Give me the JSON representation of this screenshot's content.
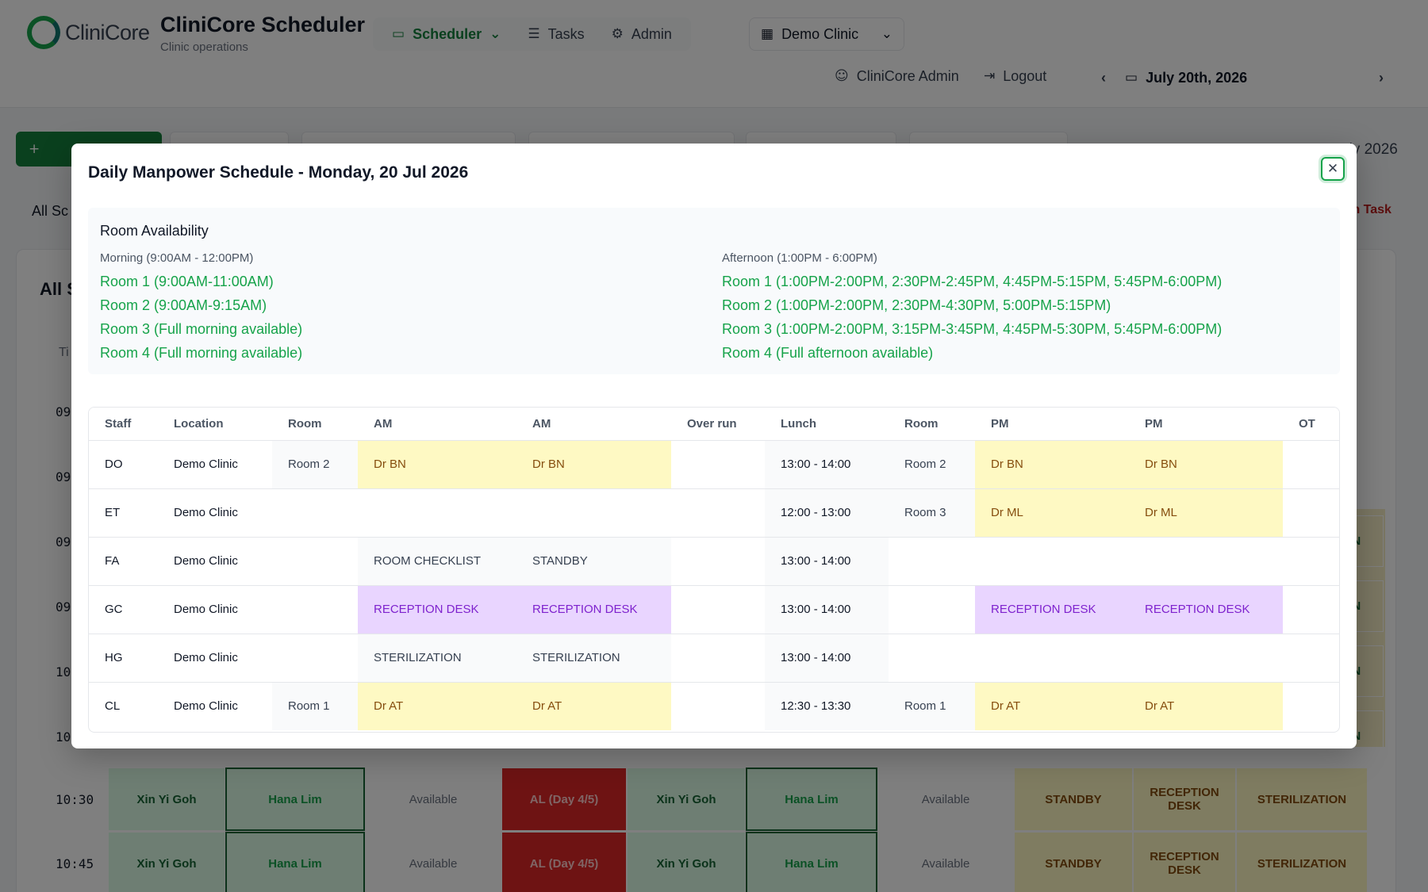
{
  "app": {
    "logo_text": "CliniCore",
    "title": "CliniCore Scheduler",
    "subtitle": "Clinic operations"
  },
  "nav": {
    "items": [
      {
        "label": "Scheduler",
        "icon": "calendar-icon"
      },
      {
        "label": "Tasks",
        "icon": "tasks-icon"
      },
      {
        "label": "Admin",
        "icon": "sliders-icon"
      }
    ]
  },
  "clinic_selector": {
    "value": "Demo Clinic"
  },
  "user": {
    "name": "CliniCore Admin",
    "logout_label": "Logout"
  },
  "date_nav": {
    "date": "July 20th, 2026"
  },
  "background": {
    "date_text": "uly 2026",
    "all_schedules": "All Sc",
    "admin_task": "in Task",
    "card_title": "All S",
    "th": "Ti",
    "times": [
      "09",
      "09",
      "09",
      "09",
      "10",
      "10",
      "10:30",
      "10:45"
    ],
    "rows": [
      [
        "Xin Yi Goh",
        "Hana Lim",
        "Available",
        "AL (Day 4/5)",
        "Xin Yi Goh",
        "Hana Lim",
        "Available",
        "STANDBY",
        "RECEPTION DESK",
        "STERILIZATION"
      ],
      [
        "Xin Yi Goh",
        "Hana Lim",
        "Available",
        "AL (Day 4/5)",
        "Xin Yi Goh",
        "Hana Lim",
        "Available",
        "STANDBY",
        "RECEPTION DESK",
        "STERILIZATION"
      ]
    ],
    "right_col": [
      "ON",
      "ON",
      "ON",
      "ON"
    ]
  },
  "modal": {
    "title": "Daily Manpower Schedule - Monday, 20 Jul 2026",
    "availability": {
      "title": "Room Availability",
      "morning": {
        "label": "Morning (9:00AM - 12:00PM)",
        "slots": [
          "Room 1 (9:00AM-11:00AM)",
          "Room 2 (9:00AM-9:15AM)",
          "Room 3 (Full morning available)",
          "Room 4 (Full morning available)"
        ]
      },
      "afternoon": {
        "label": "Afternoon (1:00PM - 6:00PM)",
        "slots": [
          "Room 1 (1:00PM-2:00PM, 2:30PM-2:45PM, 4:45PM-5:15PM, 5:45PM-6:00PM)",
          "Room 2 (1:00PM-2:00PM, 2:30PM-4:30PM, 5:00PM-5:15PM)",
          "Room 3 (1:00PM-2:00PM, 3:15PM-3:45PM, 4:45PM-5:30PM, 5:45PM-6:00PM)",
          "Room 4 (Full afternoon available)"
        ]
      }
    },
    "table": {
      "headers": [
        "Staff",
        "Location",
        "Room",
        "AM",
        "AM",
        "Over run",
        "Lunch",
        "Room",
        "PM",
        "PM",
        "OT"
      ],
      "rows": [
        [
          "DO",
          "Demo Clinic",
          "Room 2",
          "Dr BN",
          "Dr BN",
          "",
          "13:00 - 14:00",
          "Room 2",
          "Dr BN",
          "Dr BN",
          ""
        ],
        [
          "ET",
          "Demo Clinic",
          "",
          "",
          "",
          "",
          "12:00 - 13:00",
          "Room 3",
          "Dr ML",
          "Dr ML",
          ""
        ],
        [
          "FA",
          "Demo Clinic",
          "",
          "ROOM CHECKLIST",
          "STANDBY",
          "",
          "13:00 - 14:00",
          "",
          "",
          "",
          ""
        ],
        [
          "GC",
          "Demo Clinic",
          "",
          "RECEPTION DESK",
          "RECEPTION DESK",
          "",
          "13:00 - 14:00",
          "",
          "RECEPTION DESK",
          "RECEPTION DESK",
          ""
        ],
        [
          "HG",
          "Demo Clinic",
          "",
          "STERILIZATION",
          "STERILIZATION",
          "",
          "13:00 - 14:00",
          "",
          "",
          "",
          ""
        ],
        [
          "CL",
          "Demo Clinic",
          "Room 1",
          "Dr AT",
          "Dr AT",
          "",
          "12:30 - 13:30",
          "Room 1",
          "Dr AT",
          "Dr AT",
          ""
        ]
      ],
      "row_styles": [
        [
          "",
          "",
          "rm",
          "dr",
          "dr",
          "",
          "ln",
          "rm",
          "dr",
          "dr",
          ""
        ],
        [
          "",
          "",
          "",
          "",
          "",
          "",
          "ln",
          "rm",
          "dr",
          "dr",
          ""
        ],
        [
          "",
          "",
          "",
          "tk",
          "tk",
          "",
          "ln",
          "",
          "",
          "",
          ""
        ],
        [
          "",
          "",
          "",
          "rc",
          "rc",
          "",
          "ln",
          "",
          "rc",
          "rc",
          ""
        ],
        [
          "",
          "",
          "",
          "tk",
          "tk",
          "",
          "ln",
          "",
          "",
          "",
          ""
        ],
        [
          "",
          "",
          "rm",
          "dr",
          "dr",
          "",
          "ln",
          "rm",
          "dr",
          "dr",
          ""
        ]
      ]
    }
  },
  "colors": {
    "brand": "#15803d",
    "available": "#16a34a",
    "doctor_bg": "#fef9c3",
    "reception_bg": "#e9d5ff",
    "leave_bg": "#991b1b"
  }
}
